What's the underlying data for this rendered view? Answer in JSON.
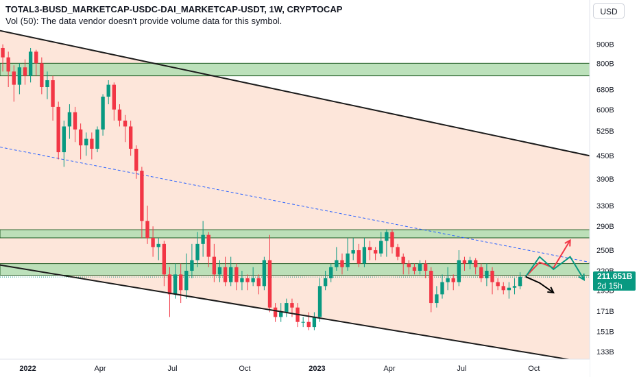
{
  "header": {
    "title": "TOTAL3-BUSD_MARKETCAP-USDC-DAI_MARKETCAP-USDT, 1W, CRYPTOCAP",
    "volume_notice": "Vol (50): The data vendor doesn't provide volume data for this symbol."
  },
  "currency_button": "USD",
  "price_tag": {
    "value": "211.651B",
    "countdown": "2d 15h"
  },
  "colors": {
    "up": "#089981",
    "down": "#F23645",
    "channel_fill": "#FDE6DA",
    "zone_fill": "#B5DEB4",
    "zone_border": "#1E5A22",
    "midline": "#2962FF",
    "projection_up": "#F23645",
    "projection_sideways": "#089981",
    "projection_down": "#000000"
  },
  "chart_data": {
    "type": "candlestick",
    "y_scale": "log",
    "ylim": [
      128,
      1000
    ],
    "y_ticks": [
      {
        "value": 900,
        "label": "900B"
      },
      {
        "value": 800,
        "label": "800B"
      },
      {
        "value": 680,
        "label": "680B"
      },
      {
        "value": 600,
        "label": "600B"
      },
      {
        "value": 525,
        "label": "525B"
      },
      {
        "value": 450,
        "label": "450B"
      },
      {
        "value": 390,
        "label": "390B"
      },
      {
        "value": 330,
        "label": "330B"
      },
      {
        "value": 290,
        "label": "290B"
      },
      {
        "value": 250,
        "label": "250B"
      },
      {
        "value": 220,
        "label": "220B"
      },
      {
        "value": 195,
        "label": "195B"
      },
      {
        "value": 171,
        "label": "171B"
      },
      {
        "value": 151,
        "label": "151B"
      },
      {
        "value": 133,
        "label": "133B"
      }
    ],
    "x_ticks": [
      {
        "week": 5,
        "label": "2022",
        "bold": true
      },
      {
        "week": 18,
        "label": "Apr",
        "bold": false
      },
      {
        "week": 31,
        "label": "Jul",
        "bold": false
      },
      {
        "week": 44,
        "label": "Oct",
        "bold": false
      },
      {
        "week": 57,
        "label": "2023",
        "bold": true
      },
      {
        "week": 70,
        "label": "Apr",
        "bold": false
      },
      {
        "week": 83,
        "label": "Jul",
        "bold": false
      },
      {
        "week": 96,
        "label": "Oct",
        "bold": false
      }
    ],
    "week_range": [
      0,
      106
    ],
    "candles": [
      [
        880,
        830,
        900,
        760
      ],
      [
        830,
        760,
        860,
        690
      ],
      [
        760,
        700,
        790,
        630
      ],
      [
        700,
        780,
        800,
        660
      ],
      [
        780,
        740,
        820,
        700
      ],
      [
        740,
        860,
        880,
        710
      ],
      [
        860,
        800,
        870,
        740
      ],
      [
        800,
        690,
        830,
        660
      ],
      [
        690,
        720,
        760,
        640
      ],
      [
        720,
        610,
        740,
        560
      ],
      [
        610,
        460,
        630,
        440
      ],
      [
        460,
        540,
        560,
        420
      ],
      [
        540,
        590,
        620,
        500
      ],
      [
        590,
        530,
        610,
        490
      ],
      [
        530,
        480,
        550,
        440
      ],
      [
        480,
        500,
        520,
        450
      ],
      [
        500,
        470,
        520,
        440
      ],
      [
        470,
        530,
        540,
        460
      ],
      [
        530,
        650,
        660,
        510
      ],
      [
        650,
        700,
        720,
        620
      ],
      [
        700,
        600,
        710,
        560
      ],
      [
        600,
        560,
        620,
        540
      ],
      [
        560,
        540,
        580,
        490
      ],
      [
        540,
        470,
        560,
        450
      ],
      [
        470,
        410,
        480,
        390
      ],
      [
        410,
        300,
        420,
        270
      ],
      [
        300,
        270,
        330,
        260
      ],
      [
        270,
        255,
        290,
        240
      ],
      [
        255,
        260,
        270,
        235
      ],
      [
        260,
        215,
        265,
        200
      ],
      [
        215,
        190,
        225,
        165
      ],
      [
        190,
        215,
        230,
        185
      ],
      [
        215,
        195,
        230,
        180
      ],
      [
        195,
        220,
        245,
        185
      ],
      [
        220,
        235,
        260,
        210
      ],
      [
        235,
        260,
        280,
        225
      ],
      [
        260,
        275,
        300,
        240
      ],
      [
        275,
        240,
        280,
        225
      ],
      [
        240,
        215,
        260,
        205
      ],
      [
        215,
        225,
        235,
        205
      ],
      [
        225,
        205,
        240,
        200
      ],
      [
        205,
        225,
        240,
        200
      ],
      [
        225,
        205,
        230,
        195
      ],
      [
        205,
        210,
        220,
        195
      ],
      [
        210,
        205,
        215,
        195
      ],
      [
        205,
        210,
        225,
        200
      ],
      [
        210,
        200,
        215,
        190
      ],
      [
        200,
        235,
        240,
        195
      ],
      [
        235,
        175,
        275,
        170
      ],
      [
        175,
        165,
        180,
        160
      ],
      [
        165,
        170,
        180,
        160
      ],
      [
        170,
        180,
        185,
        165
      ],
      [
        180,
        175,
        185,
        165
      ],
      [
        175,
        160,
        180,
        155
      ],
      [
        160,
        160,
        165,
        155
      ],
      [
        160,
        155,
        170,
        152
      ],
      [
        155,
        165,
        170,
        152
      ],
      [
        165,
        200,
        210,
        160
      ],
      [
        200,
        210,
        220,
        195
      ],
      [
        210,
        225,
        230,
        205
      ],
      [
        225,
        235,
        255,
        220
      ],
      [
        235,
        225,
        245,
        215
      ],
      [
        225,
        245,
        270,
        220
      ],
      [
        245,
        250,
        270,
        235
      ],
      [
        250,
        230,
        260,
        225
      ],
      [
        230,
        255,
        270,
        225
      ],
      [
        255,
        250,
        265,
        235
      ],
      [
        250,
        245,
        255,
        235
      ],
      [
        245,
        265,
        280,
        240
      ],
      [
        265,
        280,
        285,
        240
      ],
      [
        280,
        255,
        285,
        245
      ],
      [
        255,
        240,
        260,
        235
      ],
      [
        240,
        230,
        245,
        215
      ],
      [
        230,
        225,
        235,
        215
      ],
      [
        225,
        220,
        230,
        215
      ],
      [
        220,
        230,
        235,
        215
      ],
      [
        230,
        220,
        235,
        210
      ],
      [
        220,
        180,
        225,
        170
      ],
      [
        180,
        190,
        200,
        175
      ],
      [
        190,
        205,
        215,
        185
      ],
      [
        205,
        210,
        225,
        195
      ],
      [
        210,
        205,
        215,
        195
      ],
      [
        205,
        235,
        250,
        200
      ],
      [
        235,
        230,
        240,
        220
      ],
      [
        230,
        235,
        240,
        222
      ],
      [
        235,
        225,
        238,
        215
      ],
      [
        225,
        210,
        230,
        205
      ],
      [
        210,
        220,
        230,
        200
      ],
      [
        220,
        205,
        225,
        190
      ],
      [
        205,
        200,
        210,
        195
      ],
      [
        200,
        195,
        205,
        190
      ],
      [
        195,
        198,
        205,
        185
      ],
      [
        198,
        200,
        210,
        190
      ],
      [
        200,
        212,
        218,
        196
      ]
    ],
    "levels": {
      "channel_upper": [
        {
          "week": 0,
          "value": 980
        },
        {
          "week": 106,
          "value": 450
        }
      ],
      "channel_lower": [
        {
          "week": 0,
          "value": 228
        },
        {
          "week": 106,
          "value": 124
        }
      ],
      "midline": [
        {
          "week": 0,
          "value": 475
        },
        {
          "week": 106,
          "value": 232
        }
      ],
      "zones": [
        [
          740,
          800
        ],
        [
          270,
          284
        ],
        [
          214,
          230
        ]
      ],
      "last_price": 211.651
    },
    "projections": {
      "up": [
        [
          94.5,
          212
        ],
        [
          97,
          232
        ],
        [
          99.5,
          224
        ],
        [
          102.5,
          266
        ]
      ],
      "sideways": [
        [
          94.5,
          212
        ],
        [
          97,
          240
        ],
        [
          99.5,
          222
        ],
        [
          102.5,
          240
        ],
        [
          105,
          208
        ]
      ],
      "down": [
        [
          94.5,
          212
        ],
        [
          97,
          204
        ],
        [
          99.5,
          192
        ]
      ]
    }
  }
}
